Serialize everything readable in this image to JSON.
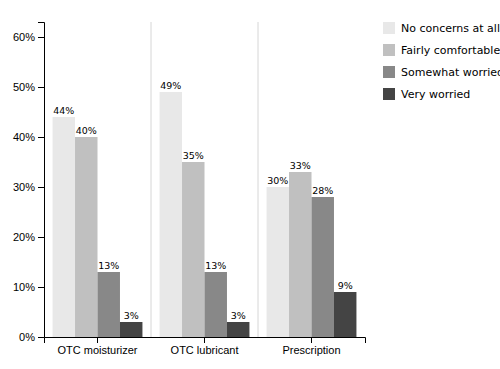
{
  "chart_data": {
    "type": "bar",
    "categories": [
      "OTC moisturizer",
      "OTC lubricant",
      "Prescription"
    ],
    "series": [
      {
        "name": "No concerns at all",
        "color": "#e8e8e8",
        "values": [
          44,
          49,
          30
        ],
        "value_labels": [
          "44%",
          "49%",
          "30%"
        ]
      },
      {
        "name": "Fairly comfortable",
        "color": "#c0c0c0",
        "values": [
          40,
          35,
          33
        ],
        "value_labels": [
          "40%",
          "35%",
          "33%"
        ]
      },
      {
        "name": "Somewhat worried",
        "color": "#888888",
        "values": [
          13,
          13,
          28
        ],
        "value_labels": [
          "13%",
          "13%",
          "28%"
        ]
      },
      {
        "name": "Very worried",
        "color": "#444444",
        "values": [
          3,
          3,
          9
        ],
        "value_labels": [
          "3%",
          "3%",
          "9%"
        ]
      }
    ],
    "ylim": [
      0,
      63
    ],
    "yticks": [
      {
        "value": 0,
        "label": "0%"
      },
      {
        "value": 10,
        "label": "10%"
      },
      {
        "value": 20,
        "label": "20%"
      },
      {
        "value": 30,
        "label": "30%"
      },
      {
        "value": 40,
        "label": "40%"
      },
      {
        "value": 50,
        "label": "50%"
      },
      {
        "value": 60,
        "label": "60%"
      }
    ],
    "grid": false,
    "legend": "right",
    "data_labels": true
  }
}
